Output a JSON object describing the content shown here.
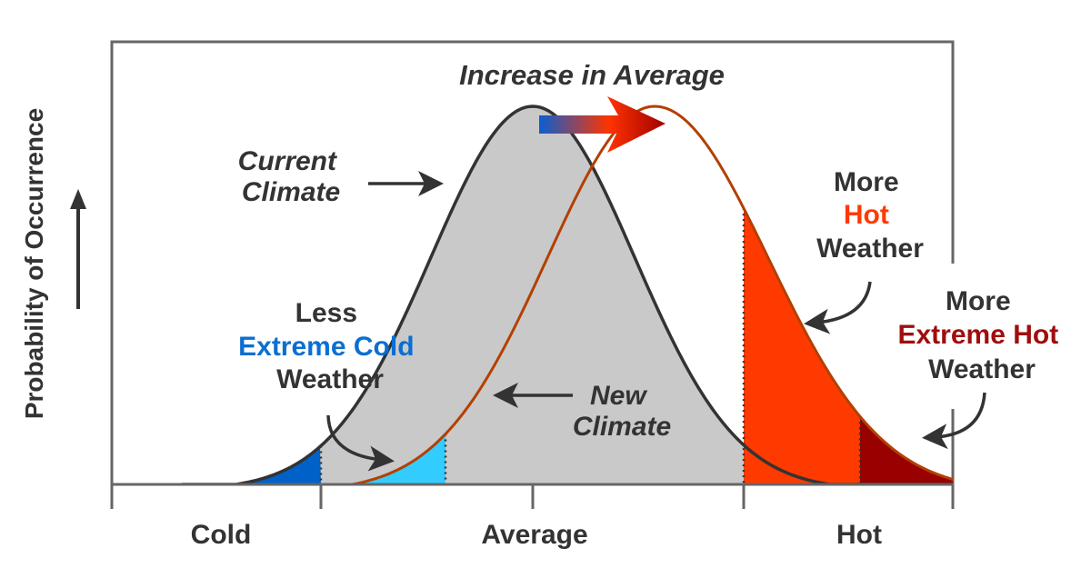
{
  "title": "Increase in Average",
  "y_axis_label": "Probability of Occurrence",
  "x_axis_labels": [
    "Cold",
    "Average",
    "Hot"
  ],
  "current_climate": [
    "Current",
    "Climate"
  ],
  "new_climate": [
    "New",
    "Climate"
  ],
  "less_extreme_cold": {
    "line1": "Less",
    "line2": "Extreme Cold",
    "line3": "Weather"
  },
  "more_hot": {
    "line1": "More",
    "line2": "Hot",
    "line3": "Weather"
  },
  "more_extreme_hot": {
    "line1": "More",
    "line2": "Extreme Hot",
    "line3": "Weather"
  },
  "colors": {
    "text": "#333333",
    "frame": "#666666",
    "current_fill": "#c9c9c9",
    "current_curve": "#333333",
    "new_curve": "#b34000",
    "extreme_cold_current": "#0062c8",
    "extreme_cold_new": "#33ccff",
    "hot": "#ff3a00",
    "extreme_hot": "#990000",
    "extreme_cold_text": "#0a6fd1",
    "hot_text": "#ff3a00",
    "extreme_hot_text": "#a00d0d"
  }
}
